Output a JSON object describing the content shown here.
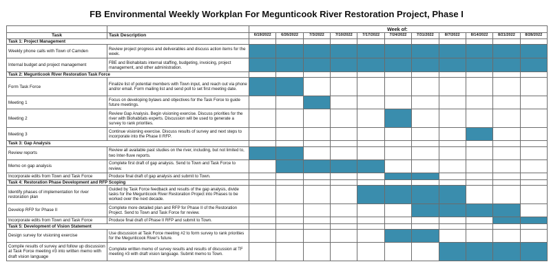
{
  "title": "FB Environmental Weekly Workplan For Megunticook River Restoration Project, Phase I",
  "headers": {
    "task": "Task",
    "description": "Task Description",
    "week_of": "Week of:"
  },
  "weeks": [
    "6/19/2022",
    "6/26/2022",
    "7/3/2022",
    "7/10/2022",
    "7/17/2022",
    "7/24/2022",
    "7/31/2022",
    "8/7/2022",
    "8/14/2022",
    "8/21/2022",
    "8/28/2022"
  ],
  "colors": {
    "bar": "#3a8dad",
    "grid": "#6b6b6b"
  },
  "sections": [
    {
      "name": "Task 1: Project Management",
      "rows": [
        {
          "task": "Weekly phone calls with Town of Camden",
          "desc": "Review project progress and deliverables and discuss action items for the week.",
          "start": 0,
          "end": 11,
          "h": 20
        },
        {
          "task": "Internal budget and project management",
          "desc": "FBE and Biohabitats internal staffing, budgeting, invoicing, project management, and other administration.",
          "start": 0,
          "end": 11,
          "h": 20
        }
      ]
    },
    {
      "name": "Task 2: Megunticook River Restoration Task Force",
      "rows": [
        {
          "task": "Form Task Force",
          "desc": "Finalize list of potential members with Town input, and reach out via phone and/or email. Form mailing list and send poll to set first meeting date.",
          "start": 0,
          "end": 2,
          "h": 27
        },
        {
          "task": "Meeting 1",
          "desc": "Focus on developing bylaws and objectives for the Task Force to guide future meetings.",
          "start": 2,
          "end": 3,
          "h": 19
        },
        {
          "task": "Meeting 2",
          "desc": "Review Gap Analysis. Begin visioning exercise. Discuss priorities for the river with Biohabitats experts. Discussion will be used to generate a survey to rank priorities.",
          "start": 5,
          "end": 6,
          "h": 27
        },
        {
          "task": "Meeting 3",
          "desc": "Continue visioning exercise. Discuss results of survey and next steps to incorporate into the Phase II RFP.",
          "start": 8,
          "end": 9,
          "h": 19
        }
      ]
    },
    {
      "name": "Task 3: Gap Analysis",
      "rows": [
        {
          "task": "Review reports",
          "desc": "Review all available past studies on the river, including, but not limited to, two Inter-fluve reports.",
          "start": 0,
          "end": 2,
          "h": 19
        },
        {
          "task": "Memo on gap analysis",
          "desc": "Complete first draft of gap analysis. Send to Town and Task Force to review.",
          "start": 1,
          "end": 5,
          "h": 19
        },
        {
          "task": "Incorporate edits from Town and Task Force",
          "desc": "Produce final draft of gap analysis and submit to Town.",
          "start": 5,
          "end": 7,
          "h": 10
        }
      ]
    },
    {
      "name": "Task 4: Restoration Phase Development and RFP Scoping",
      "rows": [
        {
          "task": "Identify phases of implementation for river restoration plan",
          "desc": "Guided by Task Force feedback and results of the gap analysis, divide tasks for the Megunticook River Restoration Project into Phases to be worked over the next decade.",
          "start": 4,
          "end": 8,
          "h": 27
        },
        {
          "task": "Develop RFP for Phase II",
          "desc": "Complete more detailed plan and RFP for Phase II of the Restoration Project. Send to Town and Task Force for review.",
          "start": 6,
          "end": 10,
          "h": 19
        },
        {
          "task": "Incorporate edits from Town and Task Force",
          "desc": "Produce final draft of Phase II RFP and submit to Town.",
          "start": 9,
          "end": 11,
          "h": 10
        }
      ]
    },
    {
      "name": "Task 5: Development of Vision Statement",
      "rows": [
        {
          "task": "Design survey for visioning exercise",
          "desc": "Use discussion at Task Force meeting #2 to form survey to rank priorities for the Megunticook River's future.",
          "start": 5,
          "end": 7,
          "h": 19
        },
        {
          "task": "Compile results of survey and follow up discussion at Task Force meeting #3 into written memo with draft vision language",
          "desc": "Complete written memo of survey results and results of discussion at TF meeting #3 with draft vision language. Submit memo to Town.",
          "start": 7,
          "end": 11,
          "h": 27
        }
      ]
    }
  ]
}
